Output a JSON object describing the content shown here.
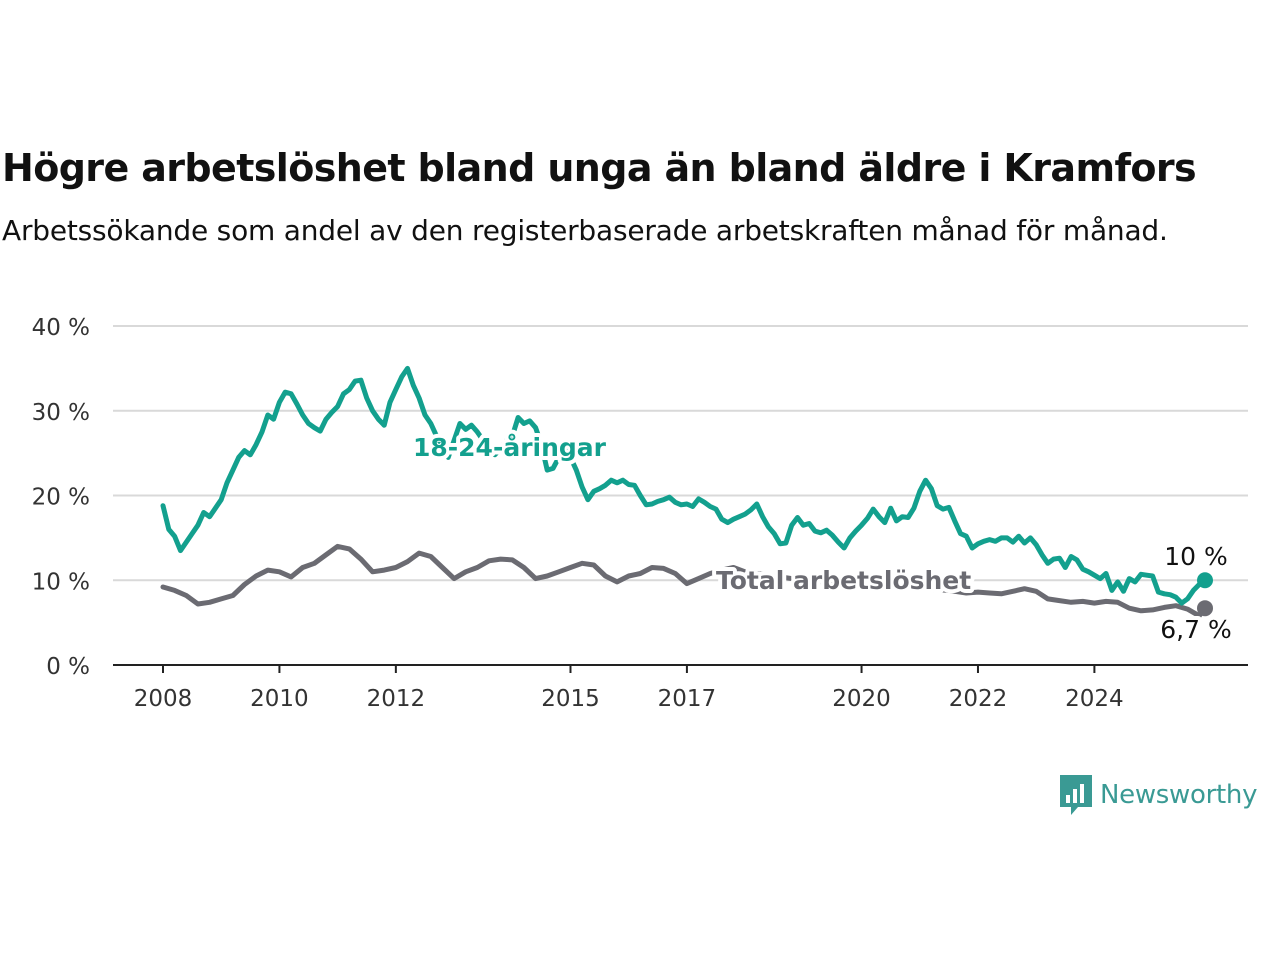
{
  "title": "Högre arbetslöshet bland unga än bland äldre i Kramfors",
  "subtitle": "Arbetssökande som andel av den registerbaserade arbetskraften månad för månad.",
  "brand": {
    "name": "Newsworthy",
    "color": "#3a9a94"
  },
  "chart_data": {
    "type": "line",
    "title": "Högre arbetslöshet bland unga än bland äldre i Kramfors",
    "subtitle": "Arbetssökande som andel av den registerbaserade arbetskraften månad för månad.",
    "xlabel": "",
    "ylabel": "",
    "ylim": [
      0,
      40
    ],
    "xlim": [
      2007.8,
      2025.8
    ],
    "y_ticks": [
      0,
      10,
      20,
      30,
      40
    ],
    "y_tick_labels": [
      "0 %",
      "10 %",
      "20 %",
      "30 %",
      "40 %"
    ],
    "x_ticks": [
      2008,
      2010,
      2012,
      2015,
      2017,
      2020,
      2022,
      2024
    ],
    "x_tick_labels": [
      "2008",
      "2010",
      "2012",
      "2015",
      "2017",
      "2020",
      "2022",
      "2024"
    ],
    "grid": true,
    "series": [
      {
        "name": "18-24-åringar",
        "color": "#13a08e",
        "end_label": "10 %",
        "points": [
          [
            2008.0,
            18.8
          ],
          [
            2008.1,
            16.0
          ],
          [
            2008.2,
            15.2
          ],
          [
            2008.3,
            13.5
          ],
          [
            2008.4,
            14.5
          ],
          [
            2008.5,
            15.5
          ],
          [
            2008.6,
            16.5
          ],
          [
            2008.7,
            18.0
          ],
          [
            2008.8,
            17.5
          ],
          [
            2008.9,
            18.5
          ],
          [
            2009.0,
            19.5
          ],
          [
            2009.1,
            21.5
          ],
          [
            2009.2,
            23.0
          ],
          [
            2009.3,
            24.5
          ],
          [
            2009.4,
            25.3
          ],
          [
            2009.5,
            24.8
          ],
          [
            2009.6,
            26.0
          ],
          [
            2009.7,
            27.5
          ],
          [
            2009.8,
            29.5
          ],
          [
            2009.9,
            29.0
          ],
          [
            2010.0,
            31.0
          ],
          [
            2010.1,
            32.2
          ],
          [
            2010.2,
            32.0
          ],
          [
            2010.3,
            30.8
          ],
          [
            2010.4,
            29.5
          ],
          [
            2010.5,
            28.5
          ],
          [
            2010.6,
            28.0
          ],
          [
            2010.7,
            27.6
          ],
          [
            2010.8,
            29.0
          ],
          [
            2010.9,
            29.8
          ],
          [
            2011.0,
            30.5
          ],
          [
            2011.1,
            32.0
          ],
          [
            2011.2,
            32.5
          ],
          [
            2011.3,
            33.5
          ],
          [
            2011.4,
            33.6
          ],
          [
            2011.5,
            31.5
          ],
          [
            2011.6,
            30.0
          ],
          [
            2011.7,
            29.0
          ],
          [
            2011.8,
            28.3
          ],
          [
            2011.9,
            31.0
          ],
          [
            2012.0,
            32.5
          ],
          [
            2012.1,
            34.0
          ],
          [
            2012.2,
            35.0
          ],
          [
            2012.3,
            33.0
          ],
          [
            2012.4,
            31.5
          ],
          [
            2012.5,
            29.5
          ],
          [
            2012.6,
            28.5
          ],
          [
            2012.7,
            27.0
          ],
          [
            2012.8,
            25.5
          ],
          [
            2012.9,
            24.5
          ],
          [
            2013.0,
            26.5
          ],
          [
            2013.1,
            28.5
          ],
          [
            2013.2,
            27.8
          ],
          [
            2013.3,
            28.3
          ],
          [
            2013.4,
            27.5
          ],
          [
            2013.5,
            26.5
          ],
          [
            2013.6,
            25.5
          ],
          [
            2013.7,
            24.8
          ],
          [
            2013.8,
            25.5
          ],
          [
            2013.9,
            26.5
          ],
          [
            2014.0,
            27.0
          ],
          [
            2014.1,
            29.2
          ],
          [
            2014.2,
            28.5
          ],
          [
            2014.3,
            28.8
          ],
          [
            2014.4,
            28.0
          ],
          [
            2014.5,
            26.0
          ],
          [
            2014.6,
            23.0
          ],
          [
            2014.7,
            23.2
          ],
          [
            2014.8,
            24.5
          ],
          [
            2014.9,
            25.5
          ],
          [
            2015.0,
            24.5
          ],
          [
            2015.1,
            23.0
          ],
          [
            2015.2,
            21.0
          ],
          [
            2015.3,
            19.5
          ],
          [
            2015.4,
            20.5
          ],
          [
            2015.5,
            20.8
          ],
          [
            2015.6,
            21.2
          ],
          [
            2015.7,
            21.8
          ],
          [
            2015.8,
            21.5
          ],
          [
            2015.9,
            21.8
          ],
          [
            2016.0,
            21.3
          ],
          [
            2016.1,
            21.2
          ],
          [
            2016.2,
            20.0
          ],
          [
            2016.3,
            18.9
          ],
          [
            2016.4,
            19.0
          ],
          [
            2016.5,
            19.3
          ],
          [
            2016.6,
            19.5
          ],
          [
            2016.7,
            19.8
          ],
          [
            2016.8,
            19.2
          ],
          [
            2016.9,
            18.9
          ],
          [
            2017.0,
            19.0
          ],
          [
            2017.1,
            18.7
          ],
          [
            2017.2,
            19.6
          ],
          [
            2017.3,
            19.2
          ],
          [
            2017.4,
            18.7
          ],
          [
            2017.5,
            18.4
          ],
          [
            2017.6,
            17.2
          ],
          [
            2017.7,
            16.8
          ],
          [
            2017.8,
            17.2
          ],
          [
            2017.9,
            17.5
          ],
          [
            2018.0,
            17.8
          ],
          [
            2018.1,
            18.3
          ],
          [
            2018.2,
            19.0
          ],
          [
            2018.3,
            17.5
          ],
          [
            2018.4,
            16.3
          ],
          [
            2018.5,
            15.5
          ],
          [
            2018.6,
            14.3
          ],
          [
            2018.7,
            14.4
          ],
          [
            2018.8,
            16.5
          ],
          [
            2018.9,
            17.4
          ],
          [
            2019.0,
            16.5
          ],
          [
            2019.1,
            16.7
          ],
          [
            2019.2,
            15.8
          ],
          [
            2019.3,
            15.6
          ],
          [
            2019.4,
            15.9
          ],
          [
            2019.5,
            15.3
          ],
          [
            2019.6,
            14.5
          ],
          [
            2019.7,
            13.8
          ],
          [
            2019.8,
            15.0
          ],
          [
            2019.9,
            15.8
          ],
          [
            2020.0,
            16.5
          ],
          [
            2020.1,
            17.3
          ],
          [
            2020.2,
            18.4
          ],
          [
            2020.3,
            17.5
          ],
          [
            2020.4,
            16.8
          ],
          [
            2020.5,
            18.5
          ],
          [
            2020.6,
            17.0
          ],
          [
            2020.7,
            17.5
          ],
          [
            2020.8,
            17.4
          ],
          [
            2020.9,
            18.5
          ],
          [
            2021.0,
            20.5
          ],
          [
            2021.1,
            21.8
          ],
          [
            2021.2,
            20.8
          ],
          [
            2021.3,
            18.8
          ],
          [
            2021.4,
            18.4
          ],
          [
            2021.5,
            18.6
          ],
          [
            2021.6,
            17.0
          ],
          [
            2021.7,
            15.5
          ],
          [
            2021.8,
            15.2
          ],
          [
            2021.9,
            13.8
          ],
          [
            2022.0,
            14.3
          ],
          [
            2022.1,
            14.6
          ],
          [
            2022.2,
            14.8
          ],
          [
            2022.3,
            14.6
          ],
          [
            2022.4,
            15.0
          ],
          [
            2022.5,
            15.0
          ],
          [
            2022.6,
            14.5
          ],
          [
            2022.7,
            15.2
          ],
          [
            2022.8,
            14.4
          ],
          [
            2022.9,
            15.0
          ],
          [
            2023.0,
            14.2
          ],
          [
            2023.1,
            13.0
          ],
          [
            2023.2,
            12.0
          ],
          [
            2023.3,
            12.5
          ],
          [
            2023.4,
            12.6
          ],
          [
            2023.5,
            11.5
          ],
          [
            2023.6,
            12.8
          ],
          [
            2023.7,
            12.4
          ],
          [
            2023.8,
            11.3
          ],
          [
            2023.9,
            11.0
          ],
          [
            2024.0,
            10.6
          ],
          [
            2024.1,
            10.2
          ],
          [
            2024.2,
            10.8
          ],
          [
            2024.3,
            8.8
          ],
          [
            2024.4,
            9.8
          ],
          [
            2024.5,
            8.7
          ],
          [
            2024.6,
            10.2
          ],
          [
            2024.7,
            9.8
          ],
          [
            2024.8,
            10.7
          ],
          [
            2024.9,
            10.6
          ],
          [
            2025.0,
            10.5
          ],
          [
            2025.1,
            8.6
          ],
          [
            2025.2,
            8.4
          ],
          [
            2025.3,
            8.3
          ],
          [
            2025.4,
            8.0
          ],
          [
            2025.5,
            7.3
          ],
          [
            2025.6,
            7.8
          ],
          [
            2025.7,
            8.8
          ],
          [
            2025.8,
            9.5
          ],
          [
            2025.9,
            10.0
          ]
        ]
      },
      {
        "name": "Total arbetslöshet",
        "color": "#6b6b72",
        "end_label": "6,7 %",
        "points": [
          [
            2008.0,
            9.2
          ],
          [
            2008.2,
            8.8
          ],
          [
            2008.4,
            8.2
          ],
          [
            2008.6,
            7.2
          ],
          [
            2008.8,
            7.4
          ],
          [
            2009.0,
            7.8
          ],
          [
            2009.2,
            8.2
          ],
          [
            2009.4,
            9.5
          ],
          [
            2009.6,
            10.5
          ],
          [
            2009.8,
            11.2
          ],
          [
            2010.0,
            11.0
          ],
          [
            2010.2,
            10.4
          ],
          [
            2010.4,
            11.5
          ],
          [
            2010.6,
            12.0
          ],
          [
            2010.8,
            13.0
          ],
          [
            2011.0,
            14.0
          ],
          [
            2011.2,
            13.7
          ],
          [
            2011.4,
            12.5
          ],
          [
            2011.6,
            11.0
          ],
          [
            2011.8,
            11.2
          ],
          [
            2012.0,
            11.5
          ],
          [
            2012.2,
            12.2
          ],
          [
            2012.4,
            13.2
          ],
          [
            2012.6,
            12.8
          ],
          [
            2012.8,
            11.5
          ],
          [
            2013.0,
            10.2
          ],
          [
            2013.2,
            11.0
          ],
          [
            2013.4,
            11.5
          ],
          [
            2013.6,
            12.3
          ],
          [
            2013.8,
            12.5
          ],
          [
            2014.0,
            12.4
          ],
          [
            2014.2,
            11.5
          ],
          [
            2014.4,
            10.2
          ],
          [
            2014.6,
            10.5
          ],
          [
            2014.8,
            11.0
          ],
          [
            2015.0,
            11.5
          ],
          [
            2015.2,
            12.0
          ],
          [
            2015.4,
            11.8
          ],
          [
            2015.6,
            10.5
          ],
          [
            2015.8,
            9.8
          ],
          [
            2016.0,
            10.5
          ],
          [
            2016.2,
            10.8
          ],
          [
            2016.4,
            11.5
          ],
          [
            2016.6,
            11.4
          ],
          [
            2016.8,
            10.8
          ],
          [
            2017.0,
            9.6
          ],
          [
            2017.2,
            10.2
          ],
          [
            2017.4,
            10.8
          ],
          [
            2017.6,
            11.2
          ],
          [
            2017.8,
            11.5
          ],
          [
            2018.0,
            11.0
          ],
          [
            2018.5,
            10.5
          ],
          [
            2019.0,
            10.0
          ],
          [
            2019.5,
            9.7
          ],
          [
            2020.0,
            9.4
          ],
          [
            2020.5,
            9.2
          ],
          [
            2021.0,
            9.0
          ],
          [
            2021.5,
            8.8
          ],
          [
            2021.8,
            8.5
          ],
          [
            2022.0,
            8.6
          ],
          [
            2022.2,
            8.5
          ],
          [
            2022.4,
            8.4
          ],
          [
            2022.6,
            8.7
          ],
          [
            2022.8,
            9.0
          ],
          [
            2023.0,
            8.7
          ],
          [
            2023.2,
            7.8
          ],
          [
            2023.4,
            7.6
          ],
          [
            2023.6,
            7.4
          ],
          [
            2023.8,
            7.5
          ],
          [
            2024.0,
            7.3
          ],
          [
            2024.2,
            7.5
          ],
          [
            2024.4,
            7.4
          ],
          [
            2024.6,
            6.7
          ],
          [
            2024.8,
            6.4
          ],
          [
            2025.0,
            6.5
          ],
          [
            2025.2,
            6.8
          ],
          [
            2025.4,
            7.0
          ],
          [
            2025.6,
            6.6
          ],
          [
            2025.8,
            5.8
          ],
          [
            2025.9,
            6.7
          ]
        ]
      }
    ],
    "annotations": [
      {
        "text": "18-24-åringar",
        "series": "18-24-åringar",
        "x": 2014.3,
        "y": 25.5
      },
      {
        "text": "Total arbetslöshet",
        "series": "Total arbetslöshet",
        "x": 2021.0,
        "y": 10.1
      }
    ]
  }
}
